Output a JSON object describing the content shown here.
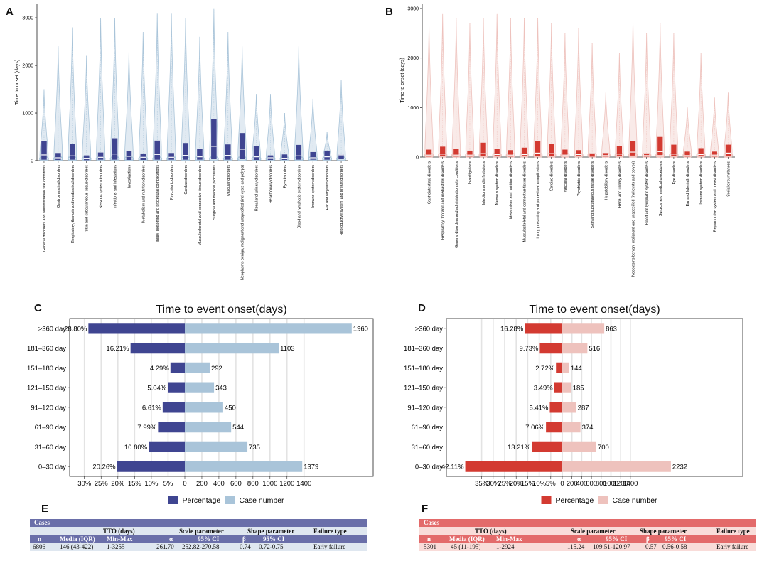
{
  "panels": {
    "A": "A",
    "B": "B",
    "C": "C",
    "D": "D",
    "E": "E",
    "F": "F"
  },
  "colors": {
    "blue_dark": "#3f4591",
    "blue_light": "#a9c4d9",
    "red_dark": "#d33a31",
    "red_light": "#eec2bd"
  },
  "chart_data": [
    {
      "id": "A",
      "type": "box",
      "ylabel": "Time to onset (days)",
      "ylim": [
        0,
        3300
      ],
      "yticks": [
        0,
        1000,
        2000,
        3000
      ],
      "categories": [
        "General disorders and administration site conditions",
        "Gastrointestinal disorders",
        "Respiratory, thoracic and mediastinal disorders",
        "Skin and subcutaneous tissue disorders",
        "Nervous system disorders",
        "Infections and infestations",
        "Investigations",
        "Metabolism and nutrition disorders",
        "Injury, poisoning and procedural complications",
        "Psychiatric disorders",
        "Cardiac disorders",
        "Musculoskeletal and connective tissue disorders",
        "Surgical and medical procedures",
        "Vascular disorders",
        "Neoplasms benign, malignant and unspecified (incl cysts and polyps)",
        "Renal and urinary disorders",
        "Hepatobiliary disorders",
        "Eye disorders",
        "Blood and lymphatic system disorders",
        "Immune system disorders",
        "Ear and labyrinth disorders",
        "Reproductive system and breast disorders"
      ],
      "q1": [
        20,
        15,
        20,
        10,
        20,
        20,
        15,
        15,
        20,
        20,
        20,
        20,
        40,
        20,
        30,
        15,
        15,
        15,
        20,
        20,
        20,
        40
      ],
      "median": [
        120,
        60,
        100,
        50,
        70,
        140,
        90,
        70,
        130,
        70,
        110,
        80,
        300,
        110,
        240,
        80,
        60,
        50,
        100,
        60,
        80,
        120
      ],
      "q3": [
        410,
        160,
        350,
        110,
        170,
        470,
        200,
        150,
        420,
        160,
        370,
        250,
        880,
        340,
        580,
        310,
        110,
        130,
        330,
        180,
        210,
        130
      ],
      "max": [
        1500,
        2400,
        2800,
        2200,
        3000,
        3000,
        2300,
        2700,
        3100,
        3100,
        3000,
        2600,
        3200,
        2700,
        2400,
        1400,
        1400,
        1000,
        2400,
        1300,
        600,
        1700
      ]
    },
    {
      "id": "B",
      "type": "box",
      "ylabel": "Time to onset (days)",
      "ylim": [
        0,
        3100
      ],
      "yticks": [
        0,
        1000,
        2000,
        3000
      ],
      "categories": [
        "Gastrointestinal disorders",
        "Respiratory, thoracic and mediastinal disorders",
        "General disorders and administration site conditions",
        "Investigations",
        "Infections and infestations",
        "Nervous system disorders",
        "Metabolism and nutrition disorders",
        "Musculoskeletal and connective tissue disorders",
        "Injury, poisoning and procedural complications",
        "Cardiac disorders",
        "Vascular disorders",
        "Psychiatric disorders",
        "Skin and subcutaneous tissue disorders",
        "Hepatobiliary disorders",
        "Renal and urinary disorders",
        "Neoplasms benign, malignant and unspecified (incl cysts and polyps)",
        "Blood and lymphatic system disorders",
        "Surgical and medical procedures",
        "Eye disorders",
        "Ear and labyrinth disorders",
        "Immune system disorders",
        "Reproductive system and breast disorders",
        "Social circumstances"
      ],
      "q1": [
        10,
        15,
        10,
        10,
        20,
        15,
        10,
        15,
        20,
        20,
        15,
        15,
        5,
        10,
        20,
        30,
        10,
        40,
        20,
        10,
        15,
        10,
        20
      ],
      "median": [
        40,
        60,
        40,
        40,
        70,
        50,
        40,
        50,
        80,
        70,
        40,
        50,
        20,
        30,
        60,
        100,
        30,
        110,
        60,
        30,
        50,
        40,
        80
      ],
      "q3": [
        150,
        210,
        170,
        130,
        290,
        170,
        140,
        190,
        320,
        260,
        150,
        140,
        60,
        80,
        220,
        330,
        70,
        420,
        250,
        110,
        180,
        110,
        250
      ],
      "max": [
        2700,
        2900,
        2800,
        2700,
        2800,
        2900,
        2800,
        2800,
        2800,
        2700,
        2500,
        2600,
        2300,
        1300,
        2100,
        2800,
        2500,
        2700,
        2500,
        1000,
        2100,
        1200,
        1300
      ]
    },
    {
      "id": "C",
      "type": "diverging-bar",
      "title": "Time to event onset(days)",
      "categories": [
        ">360 day",
        "181–360 day",
        "151–180 day",
        "121–150 day",
        "91–120 day",
        "61–90 day",
        "31–60 day",
        "0–30 day"
      ],
      "percentage": [
        28.8,
        16.21,
        4.29,
        5.04,
        6.61,
        7.99,
        10.8,
        20.26
      ],
      "percentage_labels": [
        "28.80%",
        "16.21%",
        "4.29%",
        "5.04%",
        "6.61%",
        "7.99%",
        "10.80%",
        "20.26%"
      ],
      "cases": [
        1960,
        1103,
        292,
        343,
        450,
        544,
        735,
        1379
      ],
      "left_ticks": [
        "30%",
        "25%",
        "20%",
        "15%",
        "10%",
        "5%"
      ],
      "right_ticks": [
        "0",
        "200",
        "400",
        "600",
        "800",
        "1000",
        "1200",
        "1400"
      ],
      "legend": [
        "Percentage",
        "Case number"
      ]
    },
    {
      "id": "D",
      "type": "diverging-bar",
      "title": "Time to event onset(days)",
      "categories": [
        ">360 day",
        "181–360 day",
        "151–180 day",
        "121–150 day",
        "91–120 day",
        "61–90 day",
        "31–60 day",
        "0–30 day"
      ],
      "percentage": [
        16.28,
        9.73,
        2.72,
        3.49,
        5.41,
        7.06,
        13.21,
        42.11
      ],
      "percentage_labels": [
        "16.28%",
        "9.73%",
        "2.72%",
        "3.49%",
        "5.41%",
        "7.06%",
        "13.21%",
        "42.11%"
      ],
      "cases": [
        863,
        516,
        144,
        185,
        287,
        374,
        700,
        2232
      ],
      "left_ticks": [
        "35%",
        "30%",
        "25%",
        "20%",
        "15%",
        "10%",
        "5%"
      ],
      "right_ticks": [
        "0",
        "200",
        "400",
        "600",
        "800",
        "1000",
        "1200",
        "1400"
      ],
      "legend": [
        "Percentage",
        "Case number"
      ]
    }
  ],
  "tables": {
    "E": {
      "cases_label": "Cases",
      "tto": "TTO (days)",
      "scale": "Scale parameter",
      "shape": "Shape parameter",
      "failure": "Failure type",
      "h_n": "n",
      "h_median": "Media (IQR)",
      "h_minmax": "Min-Max",
      "h_alpha": "α",
      "h_ci": "95% CI",
      "h_beta": "β",
      "h_ci2": "95% CI",
      "n": "6806",
      "median": "146 (43-422)",
      "minmax": "1-3255",
      "alpha": "261.70",
      "alpha_ci": "252.82-270.58",
      "beta": "0.74",
      "beta_ci": "0.72-0.75",
      "type": "Early failure"
    },
    "F": {
      "cases_label": "Cases",
      "tto": "TTO (days)",
      "scale": "Scale parameter",
      "shape": "Shape parameter",
      "failure": "Failure type",
      "h_n": "n",
      "h_median": "Media (IQR)",
      "h_minmax": "Min-Max",
      "h_alpha": "α",
      "h_ci": "95% CI",
      "h_beta": "β",
      "h_ci2": "95% CI",
      "n": "5301",
      "median": "45 (11-195)",
      "minmax": "1-2924",
      "alpha": "115.24",
      "alpha_ci": "109.51-120.97",
      "beta": "0.57",
      "beta_ci": "0.56-0.58",
      "type": "Early failure"
    }
  }
}
